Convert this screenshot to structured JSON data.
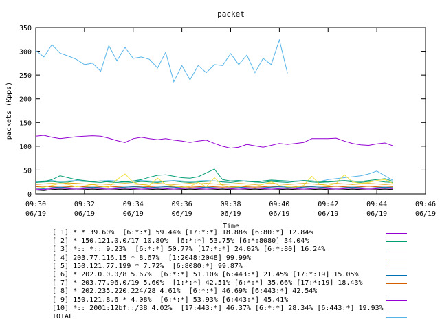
{
  "chart_data": {
    "type": "line",
    "title": "packet",
    "ylabel": "packets (Kpps)",
    "xlabel": "Time",
    "ylim": [
      0,
      350
    ],
    "yticks": [
      0,
      50,
      100,
      150,
      200,
      250,
      300,
      350
    ],
    "xticks": [
      {
        "time": "09:30",
        "date": "06/19"
      },
      {
        "time": "09:32",
        "date": "06/19"
      },
      {
        "time": "09:34",
        "date": "06/19"
      },
      {
        "time": "09:36",
        "date": "06/19"
      },
      {
        "time": "09:38",
        "date": "06/19"
      },
      {
        "time": "09:40",
        "date": "06/19"
      },
      {
        "time": "09:42",
        "date": "06/19"
      },
      {
        "time": "09:44",
        "date": "06/19"
      },
      {
        "time": "09:46",
        "date": "06/19"
      }
    ],
    "x_minutes": [
      0,
      0.333,
      0.667,
      1,
      1.333,
      1.667,
      2,
      2.333,
      2.667,
      3,
      3.333,
      3.667,
      4,
      4.333,
      4.667,
      5,
      5.333,
      5.667,
      6,
      6.333,
      6.667,
      7,
      7.333,
      7.667,
      8,
      8.333,
      8.667,
      9,
      9.333,
      9.667,
      10,
      10.333,
      10.667,
      11,
      11.333,
      11.667,
      12,
      12.333,
      12.667,
      13,
      13.333,
      13.667,
      14,
      14.333,
      14.667
    ],
    "series": [
      {
        "label": "[ 1] * * 39.60%  [6:*:*] 59.44% [17:*:*] 18.88% [6:80:*] 12.84%",
        "color": "#9400d3",
        "values": [
          121,
          123,
          119,
          116,
          118,
          120,
          121,
          122,
          121,
          117,
          112,
          108,
          116,
          119,
          116,
          114,
          116,
          113,
          111,
          108,
          111,
          113,
          106,
          100,
          96,
          98,
          104,
          101,
          98,
          102,
          106,
          104,
          106,
          108,
          116,
          116,
          116,
          117,
          111,
          106,
          103,
          102,
          105,
          107,
          101
        ]
      },
      {
        "label": "[ 2] * 150.121.0.0/17 10.80%  [6:*:*] 53.75% [6:*:8080] 34.04%",
        "color": "#009e73",
        "values": [
          24,
          26,
          30,
          38,
          34,
          30,
          28,
          26,
          27,
          25,
          24,
          25,
          27,
          30,
          35,
          39,
          40,
          37,
          34,
          33,
          36,
          44,
          52,
          30,
          27,
          28,
          26,
          25,
          27,
          29,
          28,
          27,
          26,
          28,
          27,
          26,
          25,
          27,
          28,
          27,
          26,
          28,
          30,
          32,
          26
        ]
      },
      {
        "label": "[ 3] *:: *:: 9.23%  [6:*:*] 50.77% [17:*:*] 24.02% [6:*:80] 16.24%",
        "color": "#56b4e9",
        "values": [
          302,
          288,
          314,
          296,
          290,
          283,
          272,
          275,
          258,
          312,
          280,
          308,
          285,
          288,
          283,
          265,
          298,
          236,
          270,
          240,
          270,
          255,
          272,
          270,
          295,
          272,
          292,
          255,
          285,
          272,
          324,
          254,
          null,
          null,
          null,
          null,
          null,
          null,
          null,
          null,
          null,
          null,
          null,
          null,
          null
        ]
      },
      {
        "label": "[ 4] 203.77.116.15 * 8.67%  [1:2048:2048] 99.99%",
        "color": "#e69f00",
        "values": [
          20,
          21,
          22,
          21,
          23,
          22,
          21,
          20,
          21,
          20,
          21,
          22,
          21,
          20,
          21,
          22,
          21,
          20,
          21,
          22,
          21,
          22,
          21,
          20,
          21,
          22,
          21,
          20,
          21,
          22,
          21,
          20,
          21,
          22,
          21,
          20,
          21,
          22,
          21,
          20,
          21,
          22,
          21,
          20,
          21
        ]
      },
      {
        "label": "[ 5] 150.121.77.199 * 7.72%  [6:8080:*] 99.87%",
        "color": "#f0e442",
        "values": [
          12,
          14,
          18,
          22,
          20,
          15,
          17,
          20,
          16,
          14,
          30,
          42,
          24,
          20,
          18,
          33,
          20,
          17,
          14,
          16,
          24,
          15,
          34,
          18,
          14,
          15,
          18,
          16,
          20,
          25,
          18,
          15,
          14,
          18,
          37,
          20,
          18,
          22,
          40,
          25,
          22,
          24,
          28,
          30,
          22
        ]
      },
      {
        "label": "[ 6] * 202.0.0.0/8 5.67%  [6:*:*] 51.10% [6:443:*] 21.45% [17:*:19] 15.05%",
        "color": "#0072b2",
        "values": [
          12,
          11,
          13,
          14,
          13,
          12,
          13,
          14,
          13,
          12,
          13,
          14,
          15,
          14,
          13,
          14,
          15,
          14,
          13,
          12,
          13,
          14,
          13,
          12,
          13,
          14,
          13,
          12,
          13,
          14,
          15,
          14,
          13,
          14,
          15,
          14,
          13,
          12,
          13,
          14,
          13,
          12,
          13,
          14,
          13
        ]
      },
      {
        "label": "[ 7] * 203.77.96.0/19 5.60%  [1:*:*] 42.51% [6:*:*] 35.66% [17:*:19] 18.43%",
        "color": "#d55e00",
        "values": [
          15,
          16,
          15,
          14,
          15,
          16,
          15,
          14,
          15,
          16,
          15,
          14,
          15,
          16,
          15,
          14,
          15,
          16,
          15,
          14,
          15,
          16,
          15,
          14,
          15,
          16,
          15,
          14,
          15,
          16,
          15,
          14,
          15,
          16,
          15,
          14,
          15,
          16,
          15,
          14,
          15,
          16,
          15,
          14,
          15
        ]
      },
      {
        "label": "[ 8] * 202.235.220.224/28 4.61%  [6:*:*] 46.69% [6:443:*] 42.54%",
        "color": "#000000",
        "values": [
          8,
          7,
          9,
          10,
          9,
          8,
          9,
          10,
          9,
          8,
          9,
          10,
          9,
          8,
          9,
          10,
          9,
          8,
          9,
          10,
          9,
          8,
          9,
          10,
          9,
          8,
          9,
          10,
          9,
          8,
          9,
          10,
          9,
          8,
          9,
          10,
          9,
          8,
          9,
          10,
          9,
          8,
          9,
          10,
          9
        ]
      },
      {
        "label": "[ 9] 150.121.8.6 * 4.08%  [6:*:*] 53.93% [6:443:*] 45.41%",
        "color": "#9400d3",
        "values": [
          10,
          9,
          11,
          12,
          11,
          10,
          11,
          12,
          11,
          10,
          11,
          12,
          11,
          10,
          11,
          12,
          11,
          10,
          11,
          12,
          11,
          10,
          11,
          12,
          11,
          10,
          11,
          12,
          11,
          10,
          11,
          12,
          11,
          10,
          11,
          12,
          11,
          10,
          11,
          12,
          11,
          10,
          11,
          12,
          11
        ]
      },
      {
        "label": "[10] *:: 2001:12bf::/38 4.02%  [17:443:*] 46.37% [6:*:*] 28.34% [6:443:*] 19.93%",
        "color": "#009e73",
        "values": [
          24,
          25,
          26,
          24,
          25,
          27,
          26,
          25,
          24,
          26,
          27,
          25,
          24,
          26,
          25,
          24,
          26,
          27,
          25,
          24,
          25,
          26,
          27,
          25,
          24,
          26,
          27,
          25,
          24,
          26,
          25,
          24,
          26,
          27,
          25,
          24,
          25,
          26,
          27,
          25,
          24,
          26,
          27,
          25,
          24
        ]
      },
      {
        "label": "TOTAL",
        "color": "#56b4e9",
        "values": [
          26,
          27,
          28,
          26,
          27,
          28,
          27,
          26,
          27,
          28,
          27,
          26,
          27,
          28,
          27,
          26,
          27,
          28,
          27,
          26,
          27,
          28,
          27,
          26,
          27,
          28,
          27,
          26,
          27,
          28,
          27,
          26,
          27,
          28,
          27,
          26,
          30,
          32,
          34,
          36,
          38,
          42,
          48,
          38,
          28
        ]
      }
    ]
  }
}
